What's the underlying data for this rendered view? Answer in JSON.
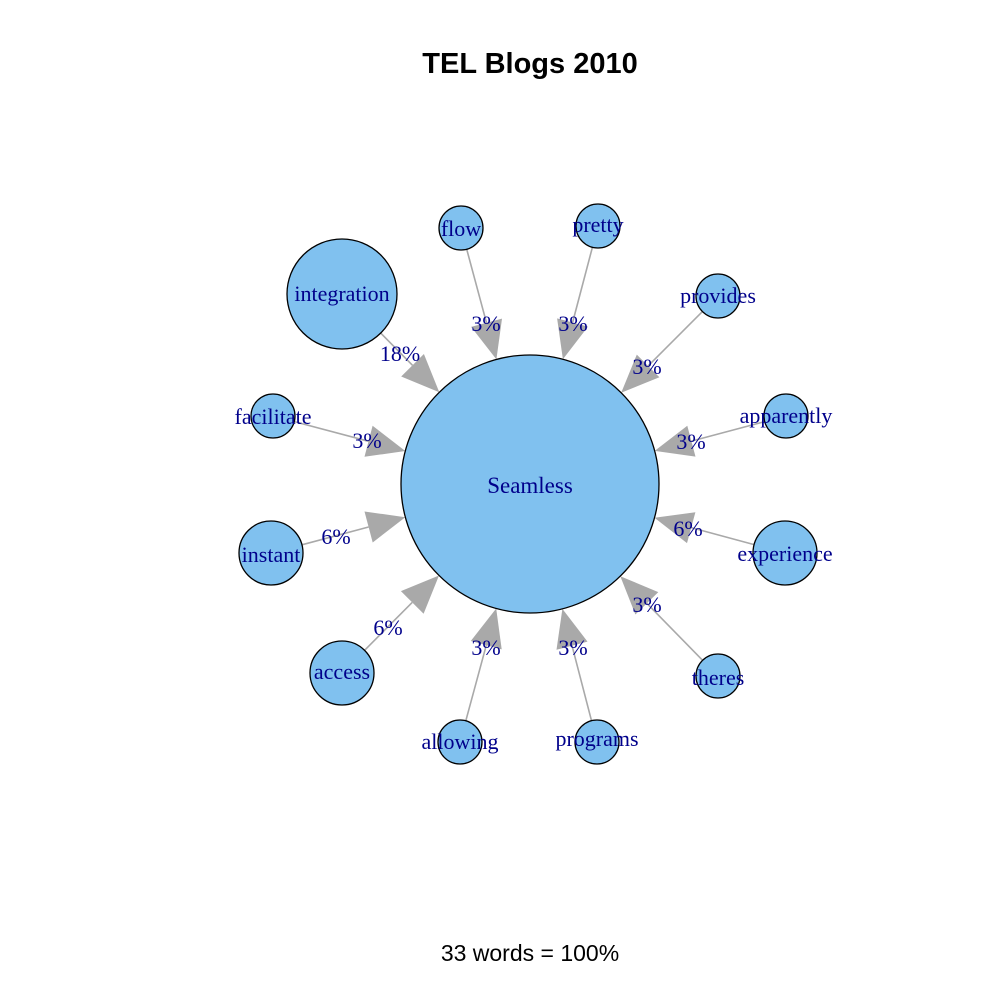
{
  "title": "TEL Blogs 2010",
  "footer": "33 words = 100%",
  "colors": {
    "node_fill": "#80c1ef",
    "node_stroke": "#000000",
    "edge": "#a9a9a9",
    "label": "#00008b"
  },
  "center": {
    "label": "Seamless"
  },
  "nodes": [
    {
      "label": "integration",
      "percent": "18%"
    },
    {
      "label": "flow",
      "percent": "3%"
    },
    {
      "label": "pretty",
      "percent": "3%"
    },
    {
      "label": "provides",
      "percent": "3%"
    },
    {
      "label": "apparently",
      "percent": "3%"
    },
    {
      "label": "experience",
      "percent": "6%"
    },
    {
      "label": "theres",
      "percent": "3%"
    },
    {
      "label": "programs",
      "percent": "3%"
    },
    {
      "label": "allowing",
      "percent": "3%"
    },
    {
      "label": "access",
      "percent": "6%"
    },
    {
      "label": "instant",
      "percent": "6%"
    },
    {
      "label": "facilitate",
      "percent": "3%"
    }
  ]
}
